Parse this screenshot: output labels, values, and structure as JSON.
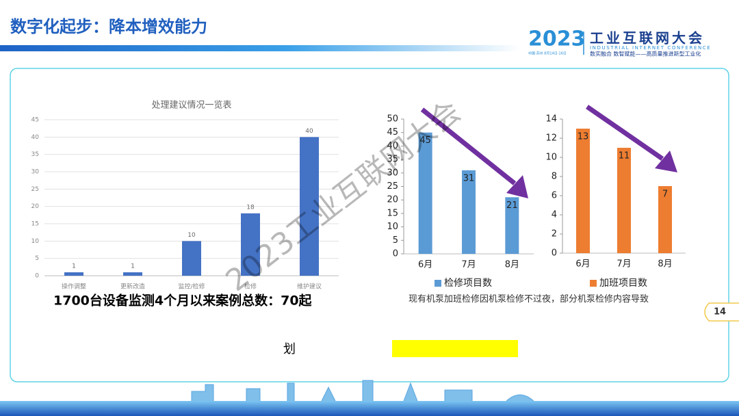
{
  "header": {
    "title": "数字化起步：降本增效能力",
    "logo_year": "2023",
    "logo_name": "工业互联网大会",
    "logo_english": "INDUSTRIAL INTERNET CONFERENCE",
    "logo_place": "中国·苏州 8月14日-16日",
    "logo_slogan": "数实融合  数智赋能——高质量推进新型工业化"
  },
  "chart_data": [
    {
      "type": "bar",
      "title": "处理建议情况一览表",
      "categories": [
        "操作调整",
        "更新改造",
        "监控/检修",
        "检修",
        "维护建议"
      ],
      "values": [
        1,
        1,
        10,
        18,
        40
      ],
      "color": "#4472c4",
      "ylim": [
        0,
        45
      ],
      "yticks": [
        0,
        5,
        10,
        15,
        20,
        25,
        30,
        35,
        40,
        45
      ],
      "grid": true
    },
    {
      "type": "bar",
      "categories": [
        "6月",
        "7月",
        "8月"
      ],
      "series": [
        {
          "name": "检修项目数",
          "color": "#5b9bd5",
          "values": [
            45,
            31,
            21
          ]
        }
      ],
      "ylim": [
        0,
        50
      ],
      "yticks": [
        0,
        5,
        10,
        15,
        20,
        25,
        30,
        35,
        40,
        45,
        50
      ],
      "grid": false,
      "legend": "bottom"
    },
    {
      "type": "bar",
      "categories": [
        "6月",
        "7月",
        "8月"
      ],
      "series": [
        {
          "name": "加班项目数",
          "color": "#ed7d31",
          "values": [
            13,
            11,
            7
          ]
        }
      ],
      "ylim": [
        0,
        14
      ],
      "yticks": [
        0,
        2,
        4,
        6,
        8,
        10,
        12,
        14
      ],
      "grid": false,
      "legend": "bottom"
    }
  ],
  "summary": "1700台设备监测4个月以来案例总数：70起",
  "caption": "现有机泵加班检修因机泵检修不过夜，部分机泵检修内容导致",
  "note_char": "划",
  "page_number": "14",
  "watermark": "2023工业互联网大会"
}
